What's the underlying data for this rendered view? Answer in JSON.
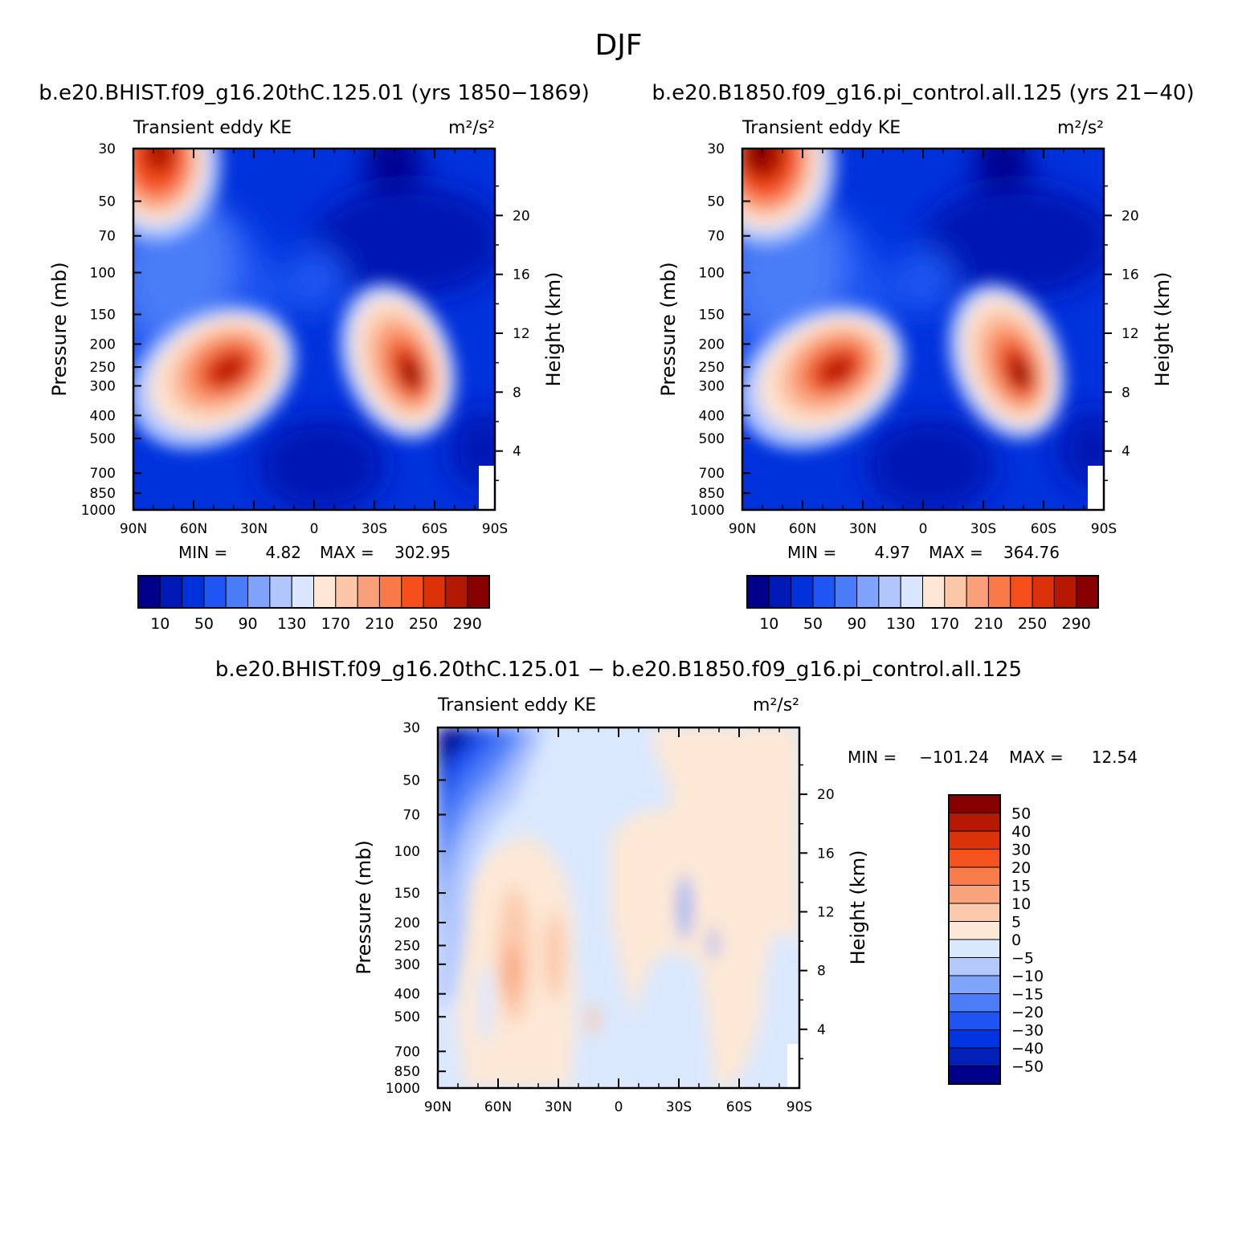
{
  "figure": {
    "title": "DJF",
    "case1_caption": "b.e20.BHIST.f09_g16.20thC.125.01 (yrs 1850−1869)",
    "case2_caption": "b.e20.B1850.f09_g16.pi_control.all.125 (yrs 21−40)",
    "diff_caption": "b.e20.BHIST.f09_g16.20thC.125.01 − b.e20.B1850.f09_g16.pi_control.all.125"
  },
  "colors": {
    "abs_palette": [
      "#00008b",
      "#0018b4",
      "#0032dc",
      "#1f55f2",
      "#4a7cf7",
      "#7fa2fb",
      "#b1c6fd",
      "#dae6fe",
      "#fde6d4",
      "#fcc6a8",
      "#f9a07a",
      "#f77a48",
      "#f5501c",
      "#dc3008",
      "#b41800",
      "#870000"
    ],
    "diff_palette": [
      "#00008b",
      "#0020b8",
      "#0034e0",
      "#2054f2",
      "#4c7cf6",
      "#80a4fa",
      "#b4c8fc",
      "#dae8fe",
      "#fde8d6",
      "#fbc9ab",
      "#f9a37c",
      "#f77c4a",
      "#f4521e",
      "#dc320a",
      "#b41800",
      "#870000"
    ]
  },
  "chart_data": [
    {
      "type": "heatmap",
      "name": "case1",
      "title": "Transient eddy KE",
      "units": "m²/s²",
      "xlabel": "",
      "ylabel": "Pressure (mb)",
      "y2label": "Height (km)",
      "x_ticks": [
        "90N",
        "60N",
        "30N",
        "0",
        "30S",
        "60S",
        "90S"
      ],
      "y_ticks": [
        "30",
        "50",
        "70",
        "100",
        "150",
        "200",
        "250",
        "300",
        "400",
        "500",
        "700",
        "850",
        "1000"
      ],
      "y2_ticks": [
        "20",
        "16",
        "12",
        "8",
        "4"
      ],
      "min_label": "MIN =",
      "min_value": "4.82",
      "max_label": "MAX =",
      "max_value": "302.95",
      "colorbar_labels": [
        "10",
        "50",
        "90",
        "130",
        "170",
        "210",
        "250",
        "290"
      ],
      "contour_levels": [
        10,
        30,
        50,
        70,
        90,
        110,
        130,
        150,
        170,
        190,
        210,
        230,
        250,
        270,
        290
      ],
      "field": {
        "ylim": [
          1000,
          30
        ],
        "lat_range": [
          90,
          -90
        ],
        "peaks": [
          {
            "lat": -40,
            "p": 270,
            "value": 300
          },
          {
            "lat": 50,
            "p": 290,
            "value": 265
          },
          {
            "lat": 80,
            "p": 32,
            "value": 260
          }
        ]
      }
    },
    {
      "type": "heatmap",
      "name": "case2",
      "title": "Transient eddy KE",
      "units": "m²/s²",
      "xlabel": "",
      "ylabel": "Pressure (mb)",
      "y2label": "Height (km)",
      "x_ticks": [
        "90N",
        "60N",
        "30N",
        "0",
        "30S",
        "60S",
        "90S"
      ],
      "y_ticks": [
        "30",
        "50",
        "70",
        "100",
        "150",
        "200",
        "250",
        "300",
        "400",
        "500",
        "700",
        "850",
        "1000"
      ],
      "y2_ticks": [
        "20",
        "16",
        "12",
        "8",
        "4"
      ],
      "min_label": "MIN =",
      "min_value": "4.97",
      "max_label": "MAX =",
      "max_value": "364.76",
      "colorbar_labels": [
        "10",
        "50",
        "90",
        "130",
        "170",
        "210",
        "250",
        "290"
      ],
      "contour_levels": [
        10,
        30,
        50,
        70,
        90,
        110,
        130,
        150,
        170,
        190,
        210,
        230,
        250,
        270,
        290
      ],
      "field": {
        "ylim": [
          1000,
          30
        ],
        "lat_range": [
          90,
          -90
        ],
        "peaks": [
          {
            "lat": -40,
            "p": 270,
            "value": 300
          },
          {
            "lat": 50,
            "p": 290,
            "value": 265
          },
          {
            "lat": 82,
            "p": 31,
            "value": 340
          }
        ]
      }
    },
    {
      "type": "heatmap",
      "name": "difference",
      "title": "Transient eddy KE",
      "units": "m²/s²",
      "xlabel": "",
      "ylabel": "Pressure (mb)",
      "y2label": "Height (km)",
      "x_ticks": [
        "90N",
        "60N",
        "30N",
        "0",
        "30S",
        "60S",
        "90S"
      ],
      "y_ticks": [
        "30",
        "50",
        "70",
        "100",
        "150",
        "200",
        "250",
        "300",
        "400",
        "500",
        "700",
        "850",
        "1000"
      ],
      "y2_ticks": [
        "20",
        "16",
        "12",
        "8",
        "4"
      ],
      "min_label": "MIN =",
      "min_value": "−101.24",
      "max_label": "MAX =",
      "max_value": "12.54",
      "colorbar_labels": [
        "50",
        "40",
        "30",
        "20",
        "15",
        "10",
        "5",
        "0",
        "−5",
        "−10",
        "−15",
        "−20",
        "−30",
        "−40",
        "−50"
      ],
      "contour_levels": [
        -50,
        -40,
        -30,
        -20,
        -15,
        -10,
        -5,
        0,
        5,
        10,
        15,
        20,
        30,
        40,
        50
      ],
      "field": {
        "ylim": [
          1000,
          30
        ],
        "lat_range": [
          90,
          -90
        ],
        "features": [
          {
            "lat": 88,
            "p": 30,
            "value": -101
          },
          {
            "lat": 55,
            "p": 280,
            "value": 12
          },
          {
            "lat": 30,
            "p": 300,
            "value": 8
          },
          {
            "lat": -30,
            "p": 200,
            "value": -9
          }
        ]
      }
    }
  ]
}
